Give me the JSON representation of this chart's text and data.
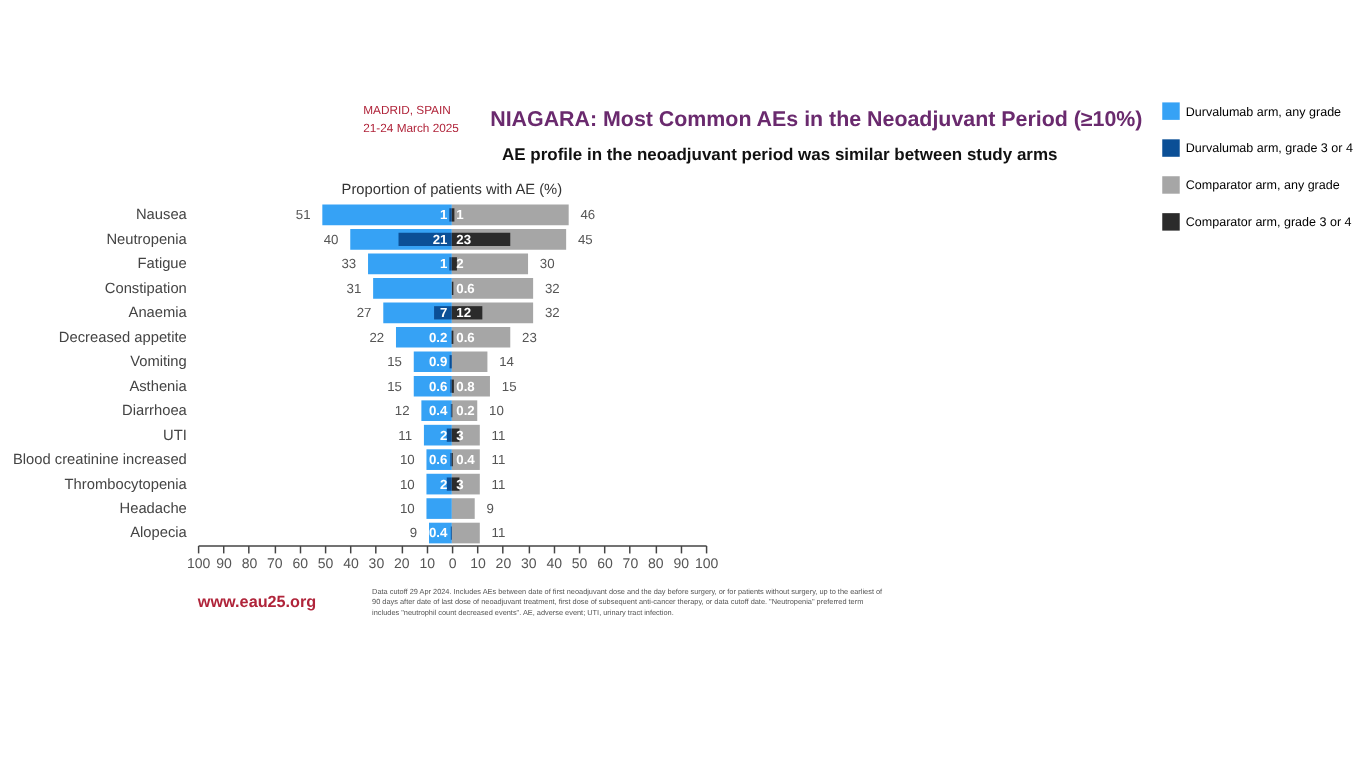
{
  "chart_data": [
    {
      "type": "bar",
      "orientation": "horizontal",
      "xlabel": "Proportion of patients with AE (%)",
      "categories": [
        "Nausea",
        "Neutropenia",
        "Fatigue",
        "Constipation",
        "Anaemia",
        "Decreased appetite",
        "Vomiting",
        "Asthenia",
        "Diarrhoea",
        "UTI",
        "Blood creatinine increased",
        "Thrombocytopenia",
        "Headache",
        "Alopecia"
      ],
      "series": [
        {
          "name": "Durvalumab arm, any grade",
          "color": "#36a2f5",
          "values": [
            51,
            40,
            33,
            31,
            27,
            22,
            15,
            15,
            12,
            11,
            10,
            10,
            10,
            9
          ]
        },
        {
          "name": "Durvalumab arm, grade 3 or 4",
          "color": "#0b4f96",
          "values": [
            1,
            21,
            1,
            null,
            7,
            0.2,
            0.9,
            0.6,
            0.4,
            2,
            0.6,
            2,
            null,
            0.4
          ]
        }
      ],
      "data_labels": true,
      "xlim": [
        100,
        0
      ],
      "xticks": [
        100,
        90,
        80,
        70,
        60,
        50,
        40,
        30,
        20,
        10
      ],
      "grid": false,
      "legend": "right",
      "annotations": [
        "MADRID, SPAIN",
        "21-24 March 2025",
        "www.eau25.org",
        "Data cutoff 29 Apr 2024. Includes AEs between date of first neoadjuvant dose and the day before surgery, or for patients without surgery, up to the earliest of 90 days after date of last dose of neoadjuvant treatment, first dose of subsequent anti-cancer therapy, or data cutoff date. \"Neutropenia\" preferred term includes \"neutrophil count decreased events\". AE, adverse event; UTI, urinary tract infection."
      ]
    },
    {
      "type": "bar",
      "orientation": "horizontal",
      "title": "NIAGARA: Most Common AEs in the Neoadjuvant Period (≥10%)",
      "subtitle": "AE profile in the neoadjuvant period was similar between study arms",
      "categories": [
        "Nausea",
        "Neutropenia",
        "Fatigue",
        "Constipation",
        "Anaemia",
        "Decreased appetite",
        "Vomiting",
        "Asthenia",
        "Diarrhoea",
        "UTI",
        "Blood creatinine increased",
        "Thrombocytopenia",
        "Headache",
        "Alopecia"
      ],
      "series": [
        {
          "name": "Comparator arm, any grade",
          "color": "#a6a6a6",
          "values": [
            46,
            45,
            30,
            32,
            32,
            23,
            14,
            15,
            10,
            11,
            11,
            11,
            9,
            11
          ]
        },
        {
          "name": "Comparator arm, grade 3 or 4",
          "color": "#2b2b2b",
          "values": [
            1,
            23,
            2,
            0.6,
            12,
            0.6,
            null,
            0.8,
            0.2,
            3,
            0.4,
            3,
            null,
            null
          ]
        }
      ],
      "data_labels": true,
      "xlim": [
        0,
        100
      ],
      "xticks": [
        0,
        10,
        20,
        30,
        40,
        50,
        60,
        70,
        80,
        90,
        100
      ],
      "grid": false,
      "legend": "right",
      "tick_labels": "x"
    }
  ]
}
